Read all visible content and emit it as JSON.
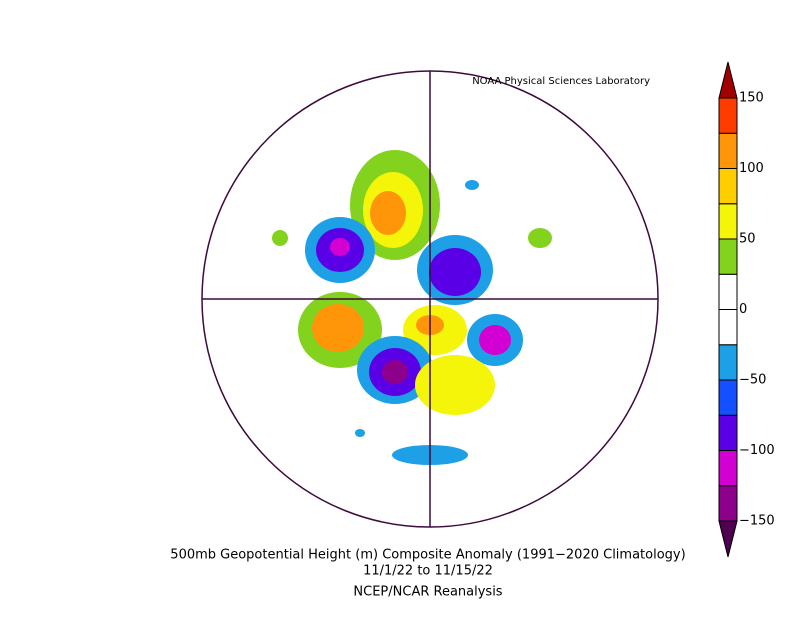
{
  "header": {
    "credit": "NOAA Physical Sciences Laboratory"
  },
  "colorbar": {
    "ticks": [
      150,
      100,
      50,
      0,
      {
        "value": -50,
        "label": "−50"
      },
      {
        "value": -100,
        "label": "−100"
      },
      {
        "value": -150,
        "label": "−150"
      }
    ],
    "colors": [
      "#8c008c",
      "#d200d2",
      "#5a00e6",
      "#1450ff",
      "#1ea0e6",
      "#ffffff",
      "#ffffff",
      "#82d21e",
      "#f5f50a",
      "#ffcd00",
      "#ff960a",
      "#ff3c00"
    ],
    "under_color": "#500050",
    "over_color": "#a00000"
  },
  "caption": {
    "title": "500mb Geopotential Height (m) Composite Anomaly (1991−2020 Climatology)",
    "dates": "11/1/22  to 11/15/22",
    "source": "NCEP/NCAR Reanalysis"
  }
}
